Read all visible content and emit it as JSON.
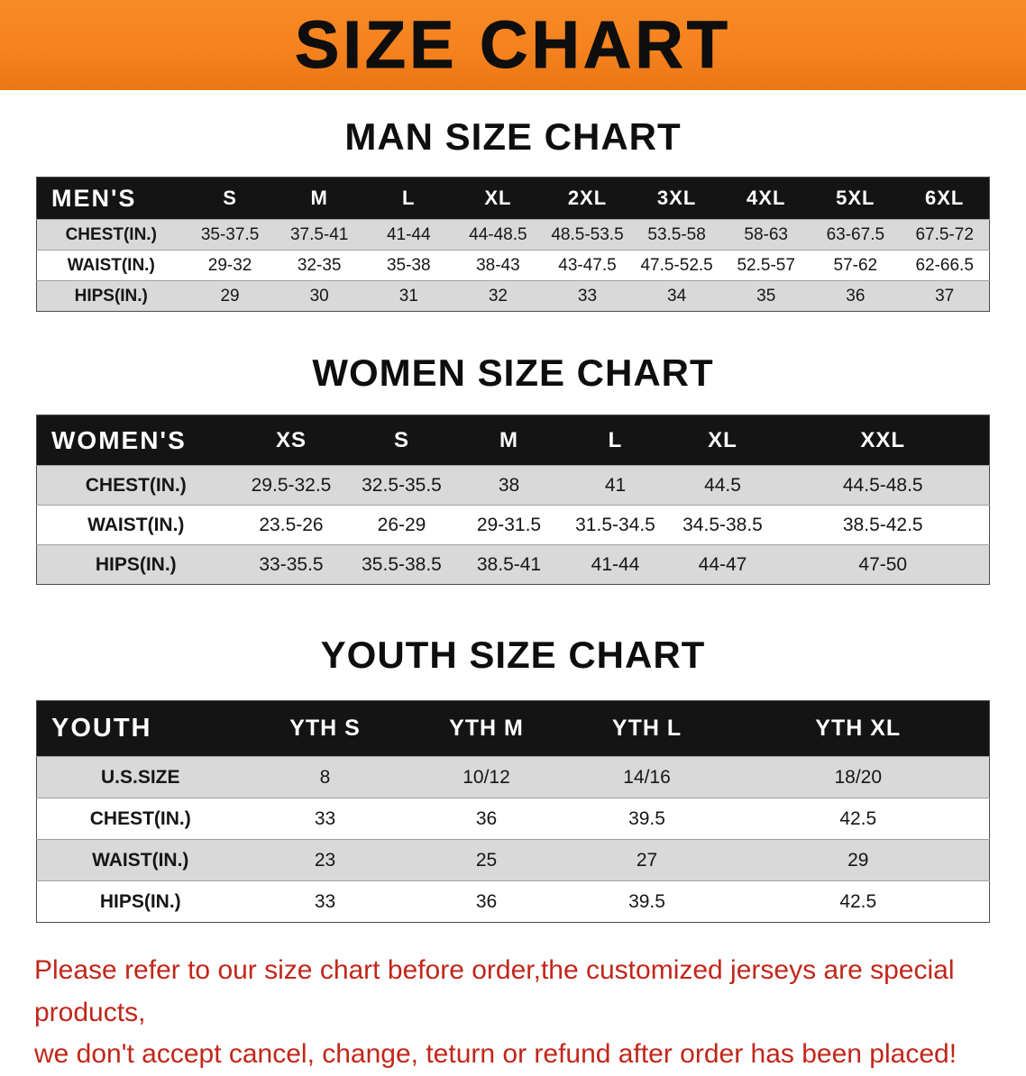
{
  "banner": {
    "title": "SIZE CHART"
  },
  "colors": {
    "banner_bg": "#F5821F",
    "table_header_bg": "#141414",
    "row_alt_bg": "#D9D9D9",
    "note_red": "#C2261A"
  },
  "sections": [
    {
      "heading": "MAN SIZE CHART",
      "table": {
        "corner_label": "MEN'S",
        "columns": [
          "S",
          "M",
          "L",
          "XL",
          "2XL",
          "3XL",
          "4XL",
          "5XL",
          "6XL"
        ],
        "rows": [
          {
            "label": "CHEST(IN.)",
            "values": [
              "35-37.5",
              "37.5-41",
              "41-44",
              "44-48.5",
              "48.5-53.5",
              "53.5-58",
              "58-63",
              "63-67.5",
              "67.5-72"
            ]
          },
          {
            "label": "WAIST(IN.)",
            "values": [
              "29-32",
              "32-35",
              "35-38",
              "38-43",
              "43-47.5",
              "47.5-52.5",
              "52.5-57",
              "57-62",
              "62-66.5"
            ]
          },
          {
            "label": "HIPS(IN.)",
            "values": [
              "29",
              "30",
              "31",
              "32",
              "33",
              "34",
              "35",
              "36",
              "37"
            ]
          }
        ]
      }
    },
    {
      "heading": "WOMEN SIZE CHART",
      "table": {
        "corner_label": "WOMEN'S",
        "columns": [
          "XS",
          "S",
          "M",
          "L",
          "XL",
          "XXL"
        ],
        "rows": [
          {
            "label": "CHEST(IN.)",
            "values": [
              "29.5-32.5",
              "32.5-35.5",
              "38",
              "41",
              "44.5",
              "44.5-48.5"
            ]
          },
          {
            "label": "WAIST(IN.)",
            "values": [
              "23.5-26",
              "26-29",
              "29-31.5",
              "31.5-34.5",
              "34.5-38.5",
              "38.5-42.5"
            ]
          },
          {
            "label": "HIPS(IN.)",
            "values": [
              "33-35.5",
              "35.5-38.5",
              "38.5-41",
              "41-44",
              "44-47",
              "47-50"
            ]
          }
        ]
      }
    },
    {
      "heading": "YOUTH SIZE CHART",
      "table": {
        "corner_label": "YOUTH",
        "columns": [
          "YTH S",
          "YTH M",
          "YTH L",
          "YTH XL"
        ],
        "rows": [
          {
            "label": "U.S.SIZE",
            "values": [
              "8",
              "10/12",
              "14/16",
              "18/20"
            ]
          },
          {
            "label": "CHEST(IN.)",
            "values": [
              "33",
              "36",
              "39.5",
              "42.5"
            ]
          },
          {
            "label": "WAIST(IN.)",
            "values": [
              "23",
              "25",
              "27",
              "29"
            ]
          },
          {
            "label": "HIPS(IN.)",
            "values": [
              "33",
              "36",
              "39.5",
              "42.5"
            ]
          }
        ]
      }
    }
  ],
  "footer_note": {
    "line1": "Please refer to our size chart before order,the customized jerseys are special products,",
    "line2": "we don't accept cancel, change, teturn or refund after order has been placed!"
  }
}
